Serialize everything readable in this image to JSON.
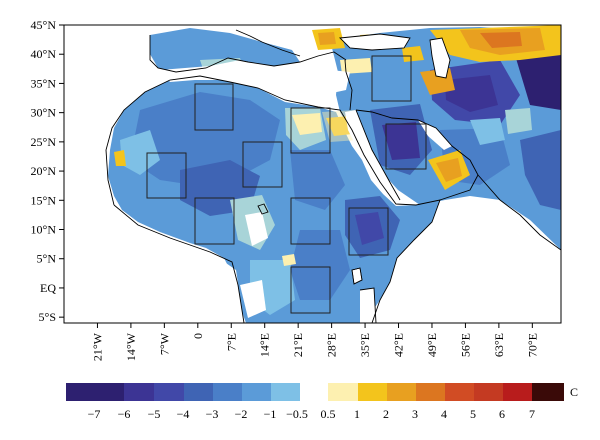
{
  "map": {
    "lat_labels": [
      "45°N",
      "40°N",
      "35°N",
      "30°N",
      "25°N",
      "20°N",
      "15°N",
      "10°N",
      "5°N",
      "EQ",
      "5°S"
    ],
    "lon_labels": [
      "21°W",
      "14°W",
      "7°W",
      "0",
      "7°E",
      "14°E",
      "21°E",
      "28°E",
      "35°E",
      "42°E",
      "49°E",
      "56°E",
      "63°E",
      "70°E"
    ],
    "lon_range_deg": [
      -28,
      76
    ],
    "lat_range_deg": [
      -6,
      45
    ],
    "colors": {
      "neg7": "#2d2070",
      "neg6": "#3c3494",
      "neg5": "#4148a8",
      "neg4": "#3f64b4",
      "neg3": "#4a7fc8",
      "neg2": "#5b9bd8",
      "neg1": "#7ec0e6",
      "neg05": "#a8d4d8",
      "zero": "#ffffff",
      "pos05": "#fdf0b0",
      "pos1": "#f3c41c",
      "pos2": "#e8a020",
      "pos3": "#dc7620",
      "pos4": "#d14c24",
      "pos5": "#c43a22",
      "pos6": "#b81c1c",
      "pos7": "#3a0a08"
    }
  },
  "colorbar": {
    "unit": "C",
    "negative_ticks": [
      "−7",
      "−6",
      "−5",
      "−4",
      "−3",
      "−2",
      "−1",
      "−0.5"
    ],
    "positive_ticks": [
      "0.5",
      "1",
      "2",
      "3",
      "4",
      "5",
      "6",
      "7"
    ]
  }
}
